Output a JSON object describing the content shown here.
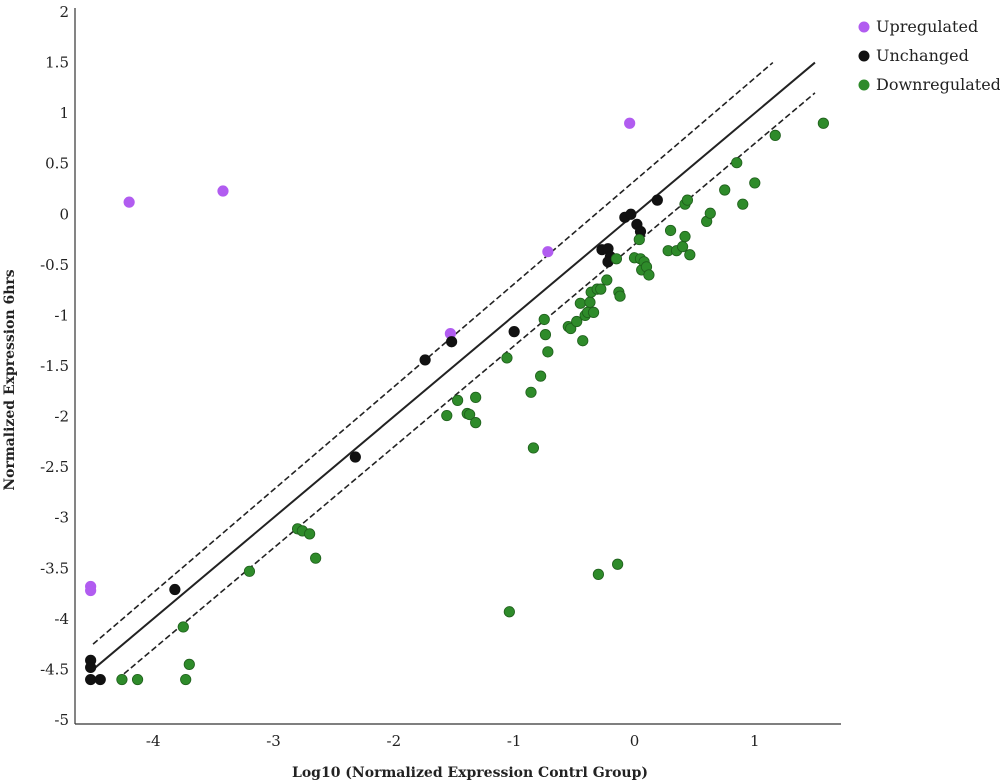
{
  "chart_data": {
    "type": "scatter",
    "title": "",
    "xlabel": "Log10 (Normalized Expression Contrl Group)",
    "ylabel": "Normalized Expression 6hrs",
    "xlim": [
      -4.65,
      1.65
    ],
    "ylim": [
      -5,
      2
    ],
    "xticks": [
      "-4",
      "-3",
      "-2",
      "-1",
      "0",
      "1"
    ],
    "yticks": [
      "2",
      "1.5",
      "1",
      "0.5",
      "0",
      "-0.5",
      "-1",
      "-1.5",
      "-2",
      "-2.5",
      "-3",
      "-3.5",
      "-4",
      "-4.5",
      "-5"
    ],
    "grid": false,
    "legend_position": "top-right",
    "series": [
      {
        "name": "Upregulated",
        "color": "#b15cf0",
        "x": [
          -4.2,
          -3.42,
          -0.04,
          -0.72,
          -1.53,
          -4.52,
          -4.52
        ],
        "y": [
          0.12,
          0.23,
          0.9,
          -0.37,
          -1.18,
          -3.68,
          -3.72
        ]
      },
      {
        "name": "Unchanged",
        "color": "#111111",
        "x": [
          -4.52,
          -4.52,
          -4.52,
          -4.44,
          -3.82,
          -2.32,
          -1.74,
          -1.52,
          -1.0,
          -0.27,
          -0.22,
          -0.2,
          -0.22,
          -0.08,
          -0.03,
          0.02,
          0.05,
          0.19
        ],
        "y": [
          -4.41,
          -4.48,
          -4.6,
          -4.6,
          -3.71,
          -2.4,
          -1.44,
          -1.26,
          -1.16,
          -0.35,
          -0.34,
          -0.42,
          -0.47,
          -0.03,
          0.0,
          -0.1,
          -0.17,
          0.14
        ],
        "reference_lines": [
          {
            "style": "solid",
            "from": [
              -4.5,
              -4.5
            ],
            "to": [
              1.5,
              1.5
            ]
          },
          {
            "style": "dashed",
            "from": [
              -4.5,
              -4.25
            ],
            "to": [
              1.15,
              1.5
            ]
          },
          {
            "style": "dashed",
            "from": [
              -4.3,
              -4.6
            ],
            "to": [
              1.5,
              1.2
            ]
          }
        ]
      },
      {
        "name": "Downregulated",
        "color": "#2e8b2a",
        "x": [
          -4.26,
          -4.13,
          -3.75,
          -3.73,
          -3.7,
          -3.2,
          -2.8,
          -2.76,
          -2.7,
          -2.65,
          -1.56,
          -1.47,
          -1.39,
          -1.37,
          -1.32,
          -1.32,
          -1.06,
          -1.04,
          -0.86,
          -0.84,
          -0.78,
          -0.75,
          -0.74,
          -0.72,
          -0.55,
          -0.53,
          -0.48,
          -0.45,
          -0.43,
          -0.41,
          -0.39,
          -0.37,
          -0.36,
          -0.34,
          -0.31,
          -0.28,
          -0.23,
          -0.15,
          -0.13,
          -0.12,
          -0.3,
          -0.14,
          0.0,
          0.04,
          0.05,
          0.06,
          0.08,
          0.1,
          0.12,
          0.28,
          0.3,
          0.35,
          0.4,
          0.42,
          0.42,
          0.44,
          0.46,
          0.6,
          0.63,
          0.75,
          0.85,
          0.9,
          1.0,
          1.17,
          1.57
        ],
        "y": [
          -4.6,
          -4.6,
          -4.08,
          -4.6,
          -4.45,
          -3.53,
          -3.11,
          -3.13,
          -3.16,
          -3.4,
          -1.99,
          -1.84,
          -1.97,
          -1.98,
          -2.06,
          -1.81,
          -1.42,
          -3.93,
          -1.76,
          -2.31,
          -1.6,
          -1.04,
          -1.19,
          -1.36,
          -1.11,
          -1.13,
          -1.06,
          -0.88,
          -1.25,
          -1.0,
          -0.97,
          -0.87,
          -0.77,
          -0.97,
          -0.74,
          -0.74,
          -0.65,
          -0.44,
          -0.77,
          -0.81,
          -3.56,
          -3.46,
          -0.43,
          -0.25,
          -0.44,
          -0.55,
          -0.47,
          -0.52,
          -0.6,
          -0.36,
          -0.16,
          -0.36,
          -0.32,
          -0.22,
          0.1,
          0.14,
          -0.4,
          -0.07,
          0.01,
          0.24,
          0.51,
          0.1,
          0.31,
          0.78,
          0.9
        ]
      }
    ]
  }
}
